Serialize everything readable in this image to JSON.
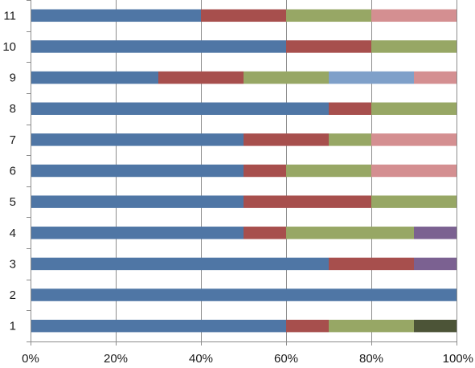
{
  "chart_data": {
    "type": "bar",
    "orientation": "horizontal",
    "stacking": "percent",
    "categories": [
      "1",
      "2",
      "3",
      "4",
      "5",
      "6",
      "7",
      "8",
      "9",
      "10",
      "11"
    ],
    "series_colors": [
      "#4f76a5",
      "#a74f4d",
      "#97a765",
      "#d48f91",
      "#7fa0c9",
      "#7b6191",
      "#4c5437"
    ],
    "rows": [
      [
        {
          "value": 60,
          "color": "#4f76a5"
        },
        {
          "value": 10,
          "color": "#a74f4d"
        },
        {
          "value": 20,
          "color": "#97a765"
        },
        {
          "value": 10,
          "color": "#4c5437"
        }
      ],
      [
        {
          "value": 100,
          "color": "#4f76a5"
        }
      ],
      [
        {
          "value": 70,
          "color": "#4f76a5"
        },
        {
          "value": 20,
          "color": "#a74f4d"
        },
        {
          "value": 10,
          "color": "#7b6191"
        }
      ],
      [
        {
          "value": 50,
          "color": "#4f76a5"
        },
        {
          "value": 10,
          "color": "#a74f4d"
        },
        {
          "value": 30,
          "color": "#97a765"
        },
        {
          "value": 10,
          "color": "#7b6191"
        }
      ],
      [
        {
          "value": 50,
          "color": "#4f76a5"
        },
        {
          "value": 30,
          "color": "#a74f4d"
        },
        {
          "value": 20,
          "color": "#97a765"
        }
      ],
      [
        {
          "value": 50,
          "color": "#4f76a5"
        },
        {
          "value": 10,
          "color": "#a74f4d"
        },
        {
          "value": 20,
          "color": "#97a765"
        },
        {
          "value": 20,
          "color": "#d48f91"
        }
      ],
      [
        {
          "value": 50,
          "color": "#4f76a5"
        },
        {
          "value": 20,
          "color": "#a74f4d"
        },
        {
          "value": 10,
          "color": "#97a765"
        },
        {
          "value": 20,
          "color": "#d48f91"
        }
      ],
      [
        {
          "value": 70,
          "color": "#4f76a5"
        },
        {
          "value": 10,
          "color": "#a74f4d"
        },
        {
          "value": 20,
          "color": "#97a765"
        }
      ],
      [
        {
          "value": 30,
          "color": "#4f76a5"
        },
        {
          "value": 20,
          "color": "#a74f4d"
        },
        {
          "value": 20,
          "color": "#97a765"
        },
        {
          "value": 20,
          "color": "#7fa0c9"
        },
        {
          "value": 10,
          "color": "#d48f91"
        }
      ],
      [
        {
          "value": 60,
          "color": "#4f76a5"
        },
        {
          "value": 20,
          "color": "#a74f4d"
        },
        {
          "value": 20,
          "color": "#97a765"
        }
      ],
      [
        {
          "value": 40,
          "color": "#4f76a5"
        },
        {
          "value": 20,
          "color": "#a74f4d"
        },
        {
          "value": 20,
          "color": "#97a765"
        },
        {
          "value": 20,
          "color": "#d48f91"
        }
      ]
    ],
    "x_ticks": [
      "0%",
      "20%",
      "40%",
      "60%",
      "80%",
      "100%"
    ],
    "xlim": [
      0,
      100
    ],
    "title": "",
    "xlabel": "",
    "ylabel": "",
    "legend": "none",
    "grid": "vertical"
  }
}
